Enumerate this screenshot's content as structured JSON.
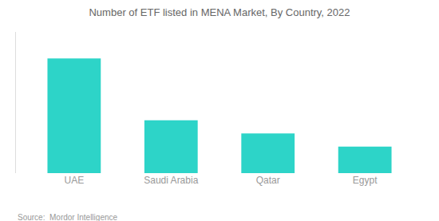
{
  "chart_data": {
    "type": "bar",
    "title": "Number of ETF listed in MENA Market, By Country, 2022",
    "categories": [
      "UAE",
      "Saudi Arabia",
      "Qatar",
      "Egypt"
    ],
    "values": [
      26,
      12,
      9,
      6
    ],
    "color": "#2DD4C8",
    "ylim": [
      0,
      32
    ],
    "grid": false,
    "tick_labels": "x",
    "annotations": [
      "Source:  Mordor Intelligence"
    ]
  }
}
